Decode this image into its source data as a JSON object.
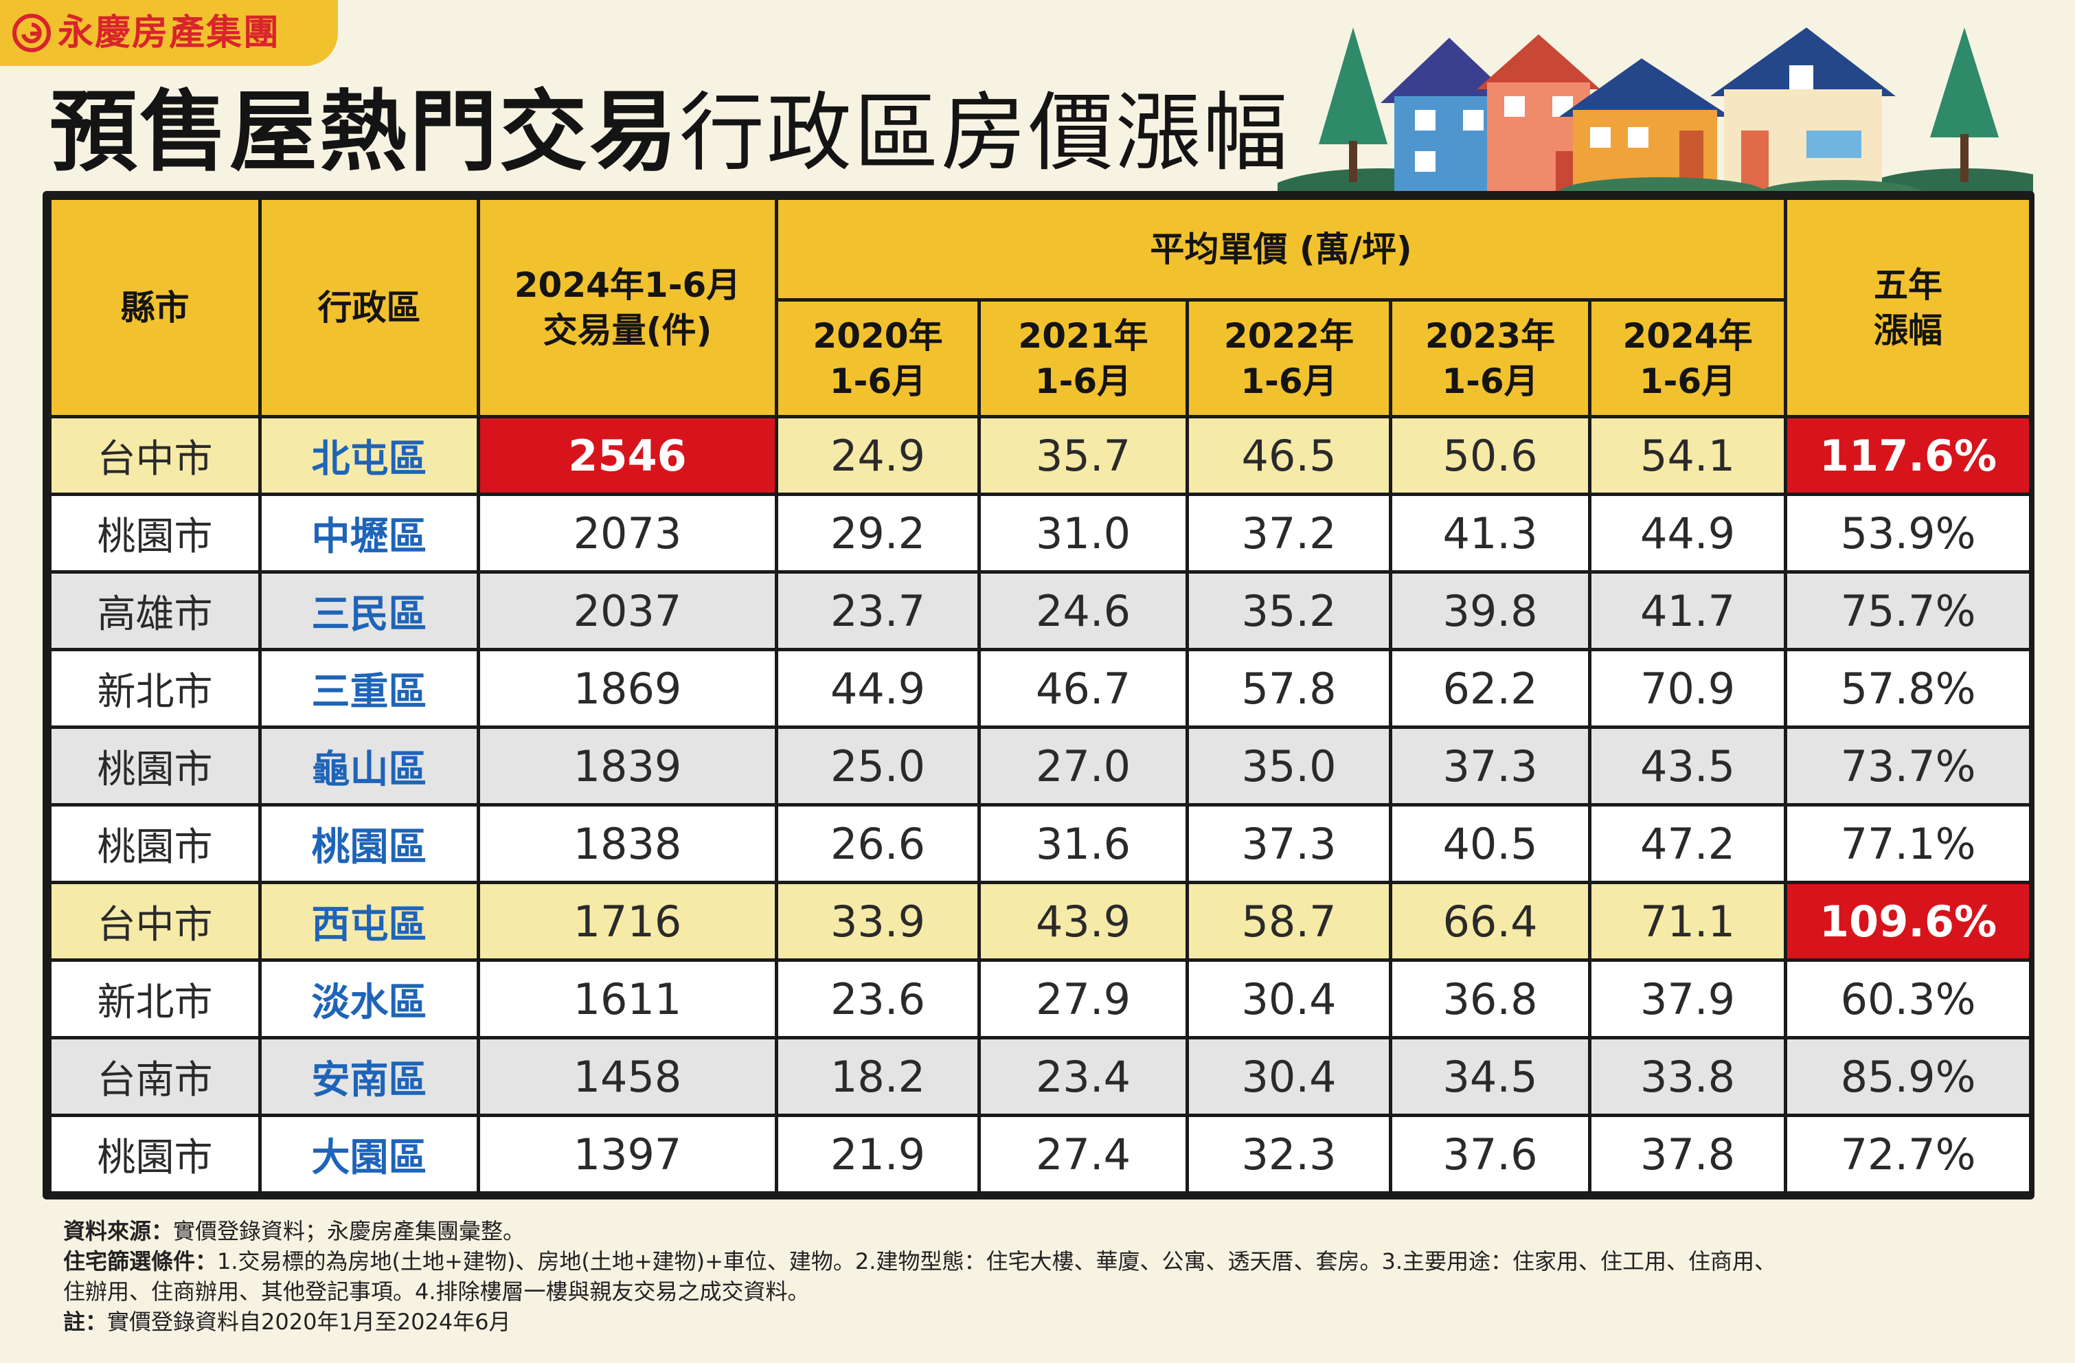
{
  "brand": {
    "name": "永慶房產集團",
    "color": "#d8242c",
    "tab_color": "#f2c12e"
  },
  "title": {
    "bold": "預售屋熱門交易",
    "light": "行政區房價漲幅"
  },
  "table": {
    "headers": {
      "county": "縣市",
      "district": "行政區",
      "volume": "2024年1-6月\n交易量(件)",
      "avg_price": "平均單價 (萬/坪)",
      "years": [
        "2020年\n1-6月",
        "2021年\n1-6月",
        "2022年\n1-6月",
        "2023年\n1-6月",
        "2024年\n1-6月"
      ],
      "growth": "五年\n漲幅"
    },
    "rows": [
      {
        "county": "台中市",
        "district": "北屯區",
        "volume": "2546",
        "p2020": "24.9",
        "p2021": "35.7",
        "p2022": "46.5",
        "p2023": "50.6",
        "p2024": "54.1",
        "growth": "117.6%"
      },
      {
        "county": "桃園市",
        "district": "中壢區",
        "volume": "2073",
        "p2020": "29.2",
        "p2021": "31.0",
        "p2022": "37.2",
        "p2023": "41.3",
        "p2024": "44.9",
        "growth": "53.9%"
      },
      {
        "county": "高雄市",
        "district": "三民區",
        "volume": "2037",
        "p2020": "23.7",
        "p2021": "24.6",
        "p2022": "35.2",
        "p2023": "39.8",
        "p2024": "41.7",
        "growth": "75.7%"
      },
      {
        "county": "新北市",
        "district": "三重區",
        "volume": "1869",
        "p2020": "44.9",
        "p2021": "46.7",
        "p2022": "57.8",
        "p2023": "62.2",
        "p2024": "70.9",
        "growth": "57.8%"
      },
      {
        "county": "桃園市",
        "district": "龜山區",
        "volume": "1839",
        "p2020": "25.0",
        "p2021": "27.0",
        "p2022": "35.0",
        "p2023": "37.3",
        "p2024": "43.5",
        "growth": "73.7%"
      },
      {
        "county": "桃園市",
        "district": "桃園區",
        "volume": "1838",
        "p2020": "26.6",
        "p2021": "31.6",
        "p2022": "37.3",
        "p2023": "40.5",
        "p2024": "47.2",
        "growth": "77.1%"
      },
      {
        "county": "台中市",
        "district": "西屯區",
        "volume": "1716",
        "p2020": "33.9",
        "p2021": "43.9",
        "p2022": "58.7",
        "p2023": "66.4",
        "p2024": "71.1",
        "growth": "109.6%"
      },
      {
        "county": "新北市",
        "district": "淡水區",
        "volume": "1611",
        "p2020": "23.6",
        "p2021": "27.9",
        "p2022": "30.4",
        "p2023": "36.8",
        "p2024": "37.9",
        "growth": "60.3%"
      },
      {
        "county": "台南市",
        "district": "安南區",
        "volume": "1458",
        "p2020": "18.2",
        "p2021": "23.4",
        "p2022": "30.4",
        "p2023": "34.5",
        "p2024": "33.8",
        "growth": "85.9%"
      },
      {
        "county": "桃園市",
        "district": "大園區",
        "volume": "1397",
        "p2020": "21.9",
        "p2021": "27.4",
        "p2022": "32.3",
        "p2023": "37.6",
        "p2024": "37.8",
        "growth": "72.7%"
      }
    ],
    "colors": {
      "header": "#f2c12e",
      "highlight_row": "#f6eaa8",
      "highlight_cell": "#d7141c",
      "district_text": "#1e64b8"
    }
  },
  "notes": {
    "source_label": "資料來源：",
    "source_text": "實價登錄資料；永慶房產集團彙整。",
    "criteria_label": "住宅篩選條件：",
    "criteria_text_1": "1.交易標的為房地(土地+建物)、房地(土地+建物)+車位、建物。2.建物型態：住宅大樓、華廈、公寓、透天厝、套房。3.主要用途：住家用、住工用、住商用、",
    "criteria_text_2": "住辦用、住商辦用、其他登記事項。4.排除樓層一樓與親友交易之成交資料。",
    "note_label": "註：",
    "note_text": "實價登錄資料自2020年1月至2024年6月"
  }
}
